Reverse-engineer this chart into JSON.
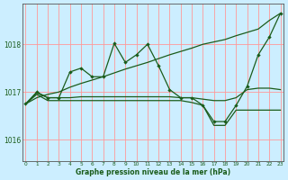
{
  "xlabel": "Graphe pression niveau de la mer (hPa)",
  "background_color": "#cceeff",
  "grid_color": "#ff9999",
  "line_color": "#1a5c1a",
  "ylim": [
    1015.55,
    1018.85
  ],
  "yticks": [
    1016,
    1017,
    1018
  ],
  "xlim": [
    -0.3,
    23.3
  ],
  "xticks": [
    0,
    1,
    2,
    3,
    4,
    5,
    6,
    7,
    8,
    9,
    10,
    11,
    12,
    13,
    14,
    15,
    16,
    17,
    18,
    19,
    20,
    21,
    22,
    23
  ],
  "line_jagged": [
    1016.75,
    1017.0,
    1016.88,
    1016.88,
    1017.42,
    1017.5,
    1017.32,
    1017.32,
    1018.02,
    1017.62,
    1017.78,
    1018.0,
    1017.55,
    1017.05,
    1016.88,
    1016.88,
    1016.72,
    1016.38,
    1016.38,
    1016.72,
    1017.12,
    1017.78,
    1018.15,
    1018.65
  ],
  "line_trend": [
    1016.75,
    1016.88,
    1016.95,
    1017.0,
    1017.1,
    1017.18,
    1017.25,
    1017.32,
    1017.4,
    1017.48,
    1017.55,
    1017.62,
    1017.7,
    1017.78,
    1017.85,
    1017.92,
    1018.0,
    1018.05,
    1018.1,
    1018.18,
    1018.25,
    1018.32,
    1018.5,
    1018.65
  ],
  "line_flat": [
    1016.75,
    1016.98,
    1016.88,
    1016.88,
    1016.88,
    1016.9,
    1016.9,
    1016.9,
    1016.9,
    1016.9,
    1016.9,
    1016.9,
    1016.9,
    1016.9,
    1016.88,
    1016.88,
    1016.85,
    1016.82,
    1016.82,
    1016.88,
    1017.05,
    1017.08,
    1017.08,
    1017.05
  ],
  "line_dip": [
    1016.75,
    1016.95,
    1016.82,
    1016.82,
    1016.82,
    1016.82,
    1016.82,
    1016.82,
    1016.82,
    1016.82,
    1016.82,
    1016.82,
    1016.82,
    1016.82,
    1016.82,
    1016.78,
    1016.72,
    1016.3,
    1016.3,
    1016.62,
    1016.62,
    1016.62,
    1016.62,
    1016.62
  ]
}
